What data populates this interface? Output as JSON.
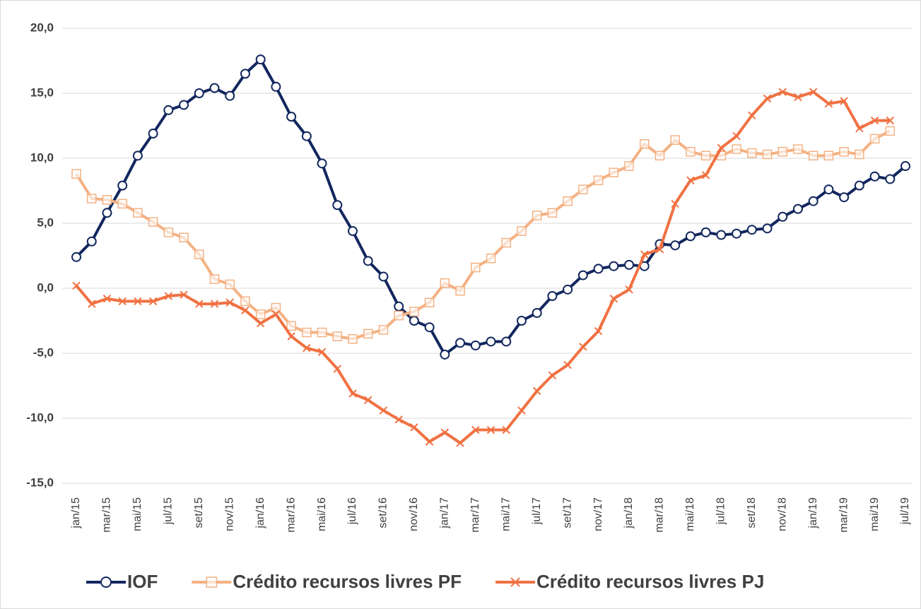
{
  "chart_data": {
    "type": "line",
    "categories": [
      "jan/15",
      null,
      "mar/15",
      null,
      "mai/15",
      null,
      "jul/15",
      null,
      "set/15",
      null,
      "nov/15",
      null,
      "jan/16",
      null,
      "mar/16",
      null,
      "mai/16",
      null,
      "jul/16",
      null,
      "set/16",
      null,
      "nov/16",
      null,
      "jan/17",
      null,
      "mar/17",
      null,
      "mai/17",
      null,
      "jul/17",
      null,
      "set/17",
      null,
      "nov/17",
      null,
      "jan/18",
      null,
      "mar/18",
      null,
      "mai/18",
      null,
      "jul/18",
      null,
      "set/18",
      null,
      "nov/18",
      null,
      "jan/19",
      null,
      "mar/19",
      null,
      "mai/19",
      null,
      "jul/19"
    ],
    "series": [
      {
        "name": "IOF",
        "color": "#12275e",
        "marker": "circle",
        "values": [
          2.4,
          3.6,
          5.8,
          7.9,
          10.2,
          11.9,
          13.7,
          14.1,
          15.0,
          15.4,
          14.8,
          16.5,
          17.6,
          15.5,
          13.2,
          11.7,
          9.6,
          6.4,
          4.4,
          2.1,
          0.9,
          -1.4,
          -2.5,
          -3.0,
          -5.1,
          -4.2,
          -4.4,
          -4.1,
          -4.1,
          -2.5,
          -1.9,
          -0.6,
          -0.1,
          1.0,
          1.5,
          1.7,
          1.8,
          1.7,
          3.4,
          3.3,
          4.0,
          4.3,
          4.1,
          4.2,
          4.5,
          4.6,
          5.5,
          6.1,
          6.7,
          7.6,
          7.0,
          7.9,
          8.6,
          8.4,
          9.4
        ]
      },
      {
        "name": "Crédito recursos livres PF",
        "color": "#f4b183",
        "marker": "square",
        "values": [
          8.8,
          6.9,
          6.8,
          6.5,
          5.8,
          5.1,
          4.3,
          3.9,
          2.6,
          0.7,
          0.3,
          -1.0,
          -2.0,
          -1.5,
          -2.9,
          -3.4,
          -3.4,
          -3.7,
          -3.9,
          -3.5,
          -3.2,
          -2.1,
          -1.8,
          -1.1,
          0.4,
          -0.2,
          1.6,
          2.3,
          3.5,
          4.4,
          5.6,
          5.8,
          6.7,
          7.6,
          8.3,
          8.9,
          9.4,
          11.1,
          10.2,
          11.4,
          10.5,
          10.2,
          10.2,
          10.7,
          10.4,
          10.3,
          10.5,
          10.7,
          10.2,
          10.2,
          10.5,
          10.3,
          11.5,
          12.1,
          null
        ]
      },
      {
        "name": "Crédito recursos livres PJ",
        "color": "#f07142",
        "marker": "x",
        "values": [
          0.2,
          -1.2,
          -0.8,
          -1.0,
          -1.0,
          -1.0,
          -0.6,
          -0.5,
          -1.2,
          -1.2,
          -1.1,
          -1.7,
          -2.7,
          -2.0,
          -3.7,
          -4.6,
          -4.9,
          -6.2,
          -8.1,
          -8.6,
          -9.4,
          -10.1,
          -10.7,
          -11.8,
          -11.1,
          -11.9,
          -10.9,
          -10.9,
          -10.9,
          -9.4,
          -7.9,
          -6.7,
          -5.9,
          -4.5,
          -3.3,
          -0.8,
          -0.1,
          2.6,
          3.0,
          6.5,
          8.3,
          8.7,
          10.8,
          11.7,
          13.3,
          14.6,
          15.1,
          14.7,
          15.1,
          14.2,
          14.4,
          12.3,
          12.9,
          12.9,
          null
        ]
      }
    ],
    "ylim": [
      -15,
      20
    ],
    "yticks": [
      {
        "value": -15,
        "label": "-15,0"
      },
      {
        "value": -10,
        "label": "-10,0"
      },
      {
        "value": -5,
        "label": "-5,0"
      },
      {
        "value": 0,
        "label": "0,0"
      },
      {
        "value": 5,
        "label": "5,0"
      },
      {
        "value": 10,
        "label": "10,0"
      },
      {
        "value": 15,
        "label": "15,0"
      },
      {
        "value": 20,
        "label": "20,0"
      }
    ],
    "grid": true,
    "legend": "bottom"
  }
}
